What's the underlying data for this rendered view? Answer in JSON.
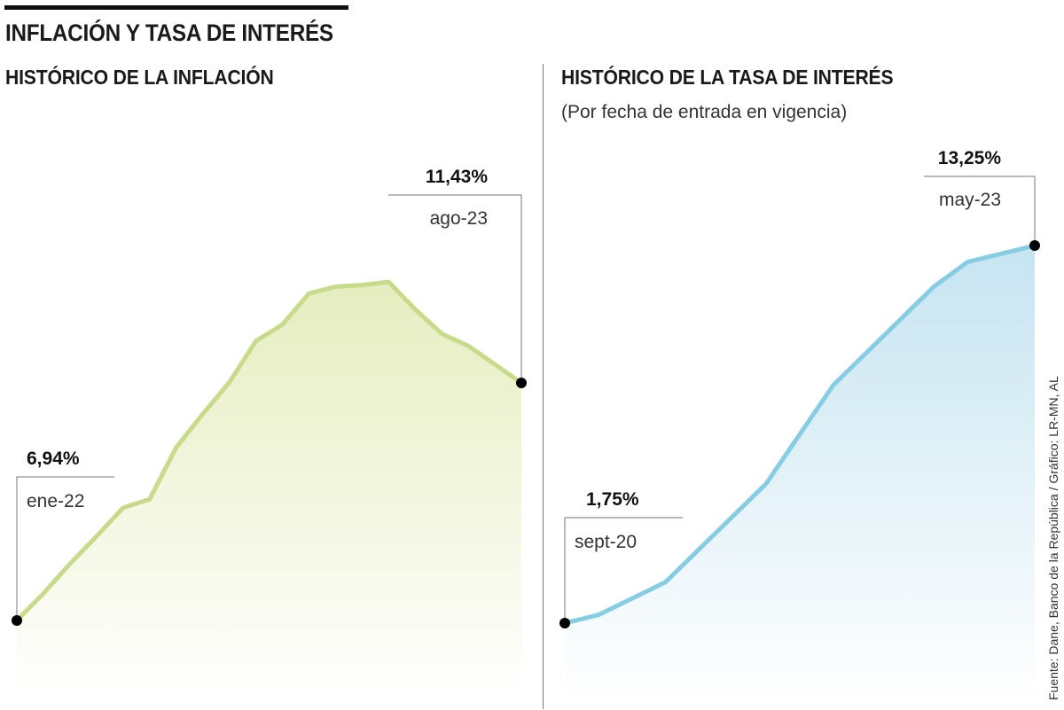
{
  "title": "INFLACIÓN Y TASA DE INTERÉS",
  "source": "Fuente: Dane, Banco de la República / Gráfico: LR-MN, AL",
  "colors": {
    "inflation_line": "#c7db8a",
    "inflation_fill_top": "#e6edbf",
    "rate_line": "#86cde3",
    "rate_fill_top": "#c6e4f1"
  },
  "chart_data": [
    {
      "type": "area",
      "title": "HISTÓRICO DE LA INFLACIÓN",
      "subtitle": "",
      "series": [
        {
          "values": [
            6.94,
            7.45,
            8.01,
            8.53,
            9.07,
            9.23,
            10.21,
            10.84,
            11.44,
            12.22,
            12.53,
            13.12,
            13.25,
            13.28,
            13.34,
            12.82,
            12.36,
            12.13,
            11.78,
            11.43
          ]
        }
      ],
      "annotations": [
        {
          "value_label": "6,94%",
          "date_label": "ene-22",
          "index": 0
        },
        {
          "value_label": "11,43%",
          "date_label": "ago-23",
          "index": 19
        }
      ]
    },
    {
      "type": "area",
      "title": "HISTÓRICO DE LA TASA DE INTERÉS",
      "subtitle": "(Por fecha de entrada en vigencia)",
      "series": [
        {
          "values": [
            1.75,
            2.0,
            2.5,
            3.0,
            4.0,
            5.0,
            6.0,
            7.5,
            9.0,
            10.0,
            11.0,
            12.0,
            12.75,
            13.0,
            13.25
          ]
        }
      ],
      "annotations": [
        {
          "value_label": "1,75%",
          "date_label": "sept-20",
          "index": 0
        },
        {
          "value_label": "13,25%",
          "date_label": "may-23",
          "index": 14
        }
      ]
    }
  ]
}
